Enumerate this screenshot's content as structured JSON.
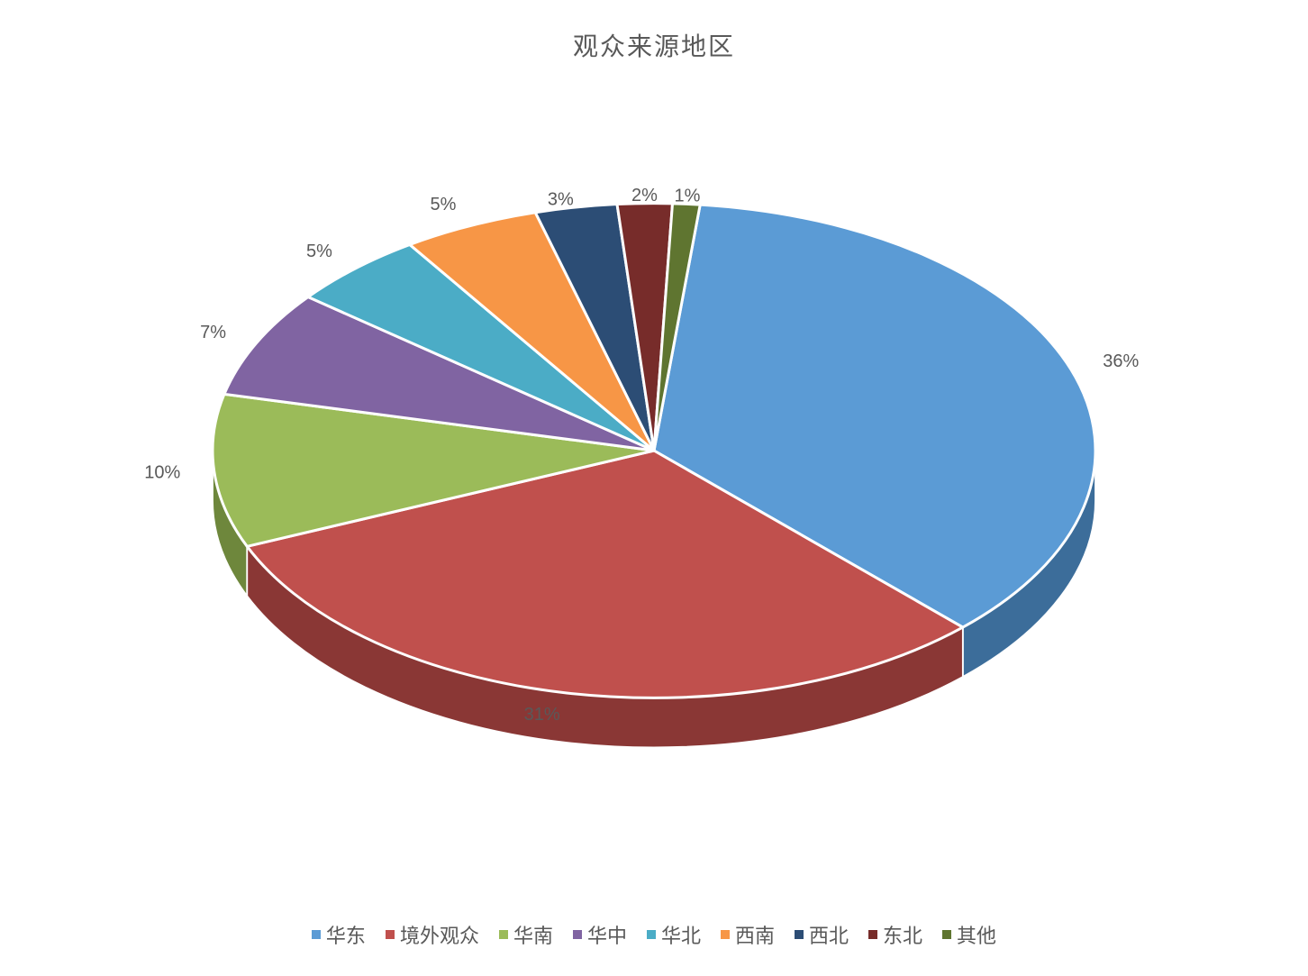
{
  "chart": {
    "type": "pie-3d",
    "title": "观众来源地区",
    "title_fontsize": 28,
    "title_color": "#595959",
    "background_color": "#ffffff",
    "depth": 55,
    "tilt": 0.56,
    "slice_gap_stroke": "#ffffff",
    "slice_gap_width": 3,
    "label_fontsize": 20,
    "label_color": "#595959",
    "legend_fontsize": 22,
    "legend_color": "#595959",
    "start_angle": -84,
    "slices": [
      {
        "label": "华东",
        "value": 36,
        "display": "36%",
        "color": "#5b9bd5",
        "side_color": "#3c6d9a"
      },
      {
        "label": "境外观众",
        "value": 31,
        "display": "31%",
        "color": "#c0504d",
        "side_color": "#8a3735"
      },
      {
        "label": "华南",
        "value": 10,
        "display": "10%",
        "color": "#9bbb59",
        "side_color": "#6e873c"
      },
      {
        "label": "华中",
        "value": 7,
        "display": "7%",
        "color": "#8064a2",
        "side_color": "#5a4673"
      },
      {
        "label": "华北",
        "value": 5,
        "display": "5%",
        "color": "#4bacc6",
        "side_color": "#347b8f"
      },
      {
        "label": "西南",
        "value": 5,
        "display": "5%",
        "color": "#f79646",
        "side_color": "#b56a2e"
      },
      {
        "label": "西北",
        "value": 3,
        "display": "3%",
        "color": "#2c4d75",
        "side_color": "#1e3451"
      },
      {
        "label": "东北",
        "value": 2,
        "display": "2%",
        "color": "#772c2a",
        "side_color": "#511c1b"
      },
      {
        "label": "其他",
        "value": 1,
        "display": "1%",
        "color": "#5f7530",
        "side_color": "#40501f"
      }
    ]
  }
}
